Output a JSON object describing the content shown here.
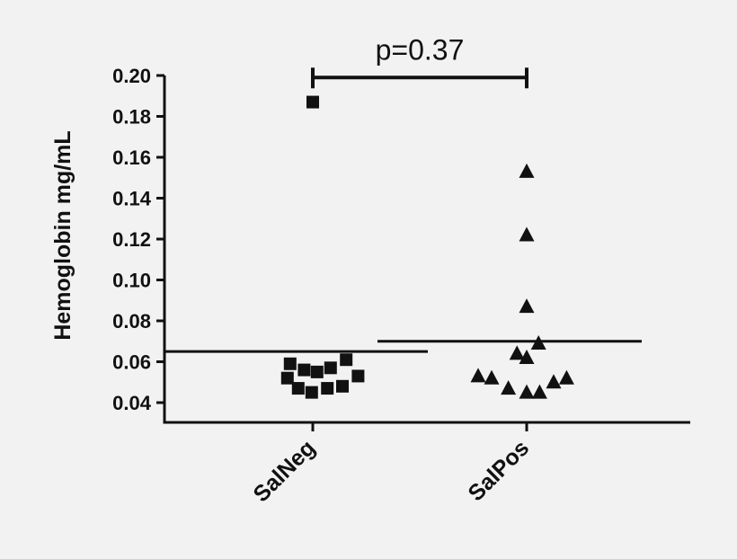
{
  "chart_data": {
    "type": "scatter",
    "ylabel": "Hemoglobin mg/mL",
    "categories": [
      "SalNeg",
      "SalPos"
    ],
    "ylim": [
      0.035,
      0.2
    ],
    "yticks": [
      "0.04",
      "0.06",
      "0.08",
      "0.10",
      "0.12",
      "0.14",
      "0.16",
      "0.18",
      "0.20"
    ],
    "yticks_values": [
      0.04,
      0.06,
      0.08,
      0.1,
      0.12,
      0.14,
      0.16,
      0.18,
      0.2
    ],
    "series": [
      {
        "category": "SalNeg",
        "marker": "square",
        "points": [
          {
            "offset": 0,
            "y": 0.187
          },
          {
            "offset": -0.42,
            "y": 0.059
          },
          {
            "offset": -0.16,
            "y": 0.056
          },
          {
            "offset": 0.08,
            "y": 0.055
          },
          {
            "offset": 0.33,
            "y": 0.057
          },
          {
            "offset": 0.62,
            "y": 0.061
          },
          {
            "offset": -0.47,
            "y": 0.052
          },
          {
            "offset": 0.84,
            "y": 0.053
          },
          {
            "offset": -0.27,
            "y": 0.047
          },
          {
            "offset": -0.02,
            "y": 0.045
          },
          {
            "offset": 0.27,
            "y": 0.047
          },
          {
            "offset": 0.55,
            "y": 0.048
          }
        ],
        "mean": 0.065
      },
      {
        "category": "SalPos",
        "marker": "triangle",
        "points": [
          {
            "offset": 0,
            "y": 0.153
          },
          {
            "offset": 0,
            "y": 0.122
          },
          {
            "offset": 0,
            "y": 0.087
          },
          {
            "offset": 0.22,
            "y": 0.069
          },
          {
            "offset": -0.18,
            "y": 0.064
          },
          {
            "offset": 0,
            "y": 0.062
          },
          {
            "offset": -0.9,
            "y": 0.053
          },
          {
            "offset": -0.65,
            "y": 0.052
          },
          {
            "offset": -0.34,
            "y": 0.047
          },
          {
            "offset": 0,
            "y": 0.045
          },
          {
            "offset": 0.24,
            "y": 0.045
          },
          {
            "offset": 0.5,
            "y": 0.05
          },
          {
            "offset": 0.74,
            "y": 0.052
          }
        ],
        "mean": 0.07
      }
    ],
    "annotation": {
      "text": "p=0.37",
      "from": "SalNeg",
      "to": "SalPos",
      "y": 0.199
    },
    "grid": false,
    "legend": "none"
  },
  "colors": {
    "background": "#f2f2f2",
    "ink": "#111111"
  }
}
